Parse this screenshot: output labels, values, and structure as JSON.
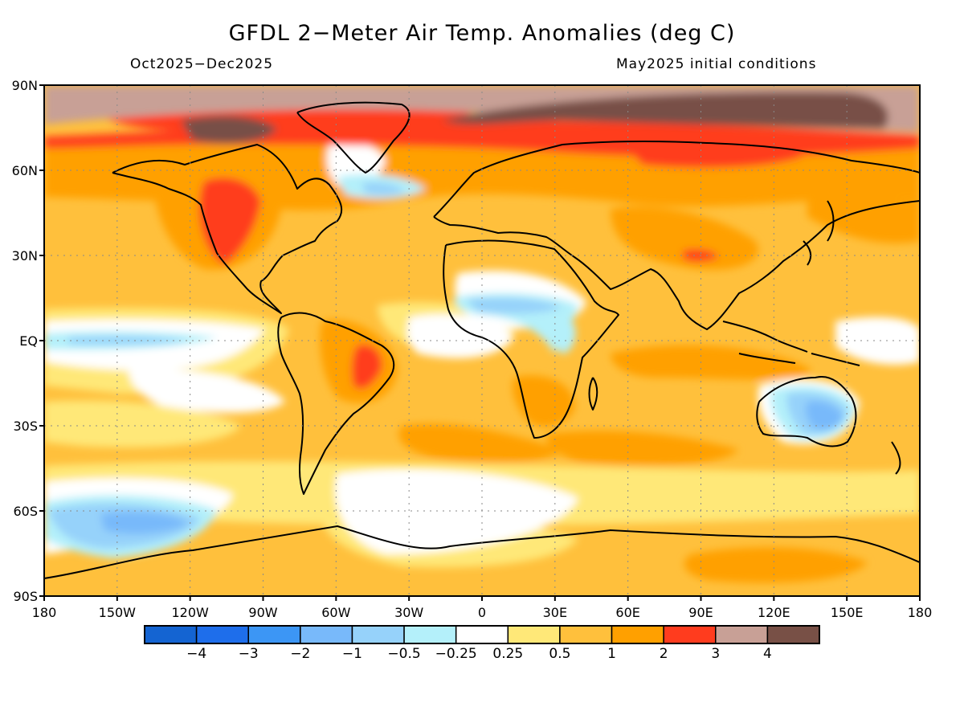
{
  "title": "GFDL 2−Meter Air Temp. Anomalies (deg C)",
  "subtitle_left": "Oct2025−Dec2025",
  "subtitle_right": "May2025 initial conditions",
  "map": {
    "projection": "equirectangular",
    "lon_range": [
      -180,
      180
    ],
    "lat_range": [
      -90,
      90
    ],
    "lat_ticks": [
      {
        "lat": 90,
        "label": "90N"
      },
      {
        "lat": 60,
        "label": "60N"
      },
      {
        "lat": 30,
        "label": "30N"
      },
      {
        "lat": 0,
        "label": "EQ"
      },
      {
        "lat": -30,
        "label": "30S"
      },
      {
        "lat": -60,
        "label": "60S"
      },
      {
        "lat": -90,
        "label": "90S"
      }
    ],
    "lon_ticks": [
      {
        "lon": -180,
        "label": "180"
      },
      {
        "lon": -150,
        "label": "150W"
      },
      {
        "lon": -120,
        "label": "120W"
      },
      {
        "lon": -90,
        "label": "90W"
      },
      {
        "lon": -60,
        "label": "60W"
      },
      {
        "lon": -30,
        "label": "30W"
      },
      {
        "lon": 0,
        "label": "0"
      },
      {
        "lon": 30,
        "label": "30E"
      },
      {
        "lon": 60,
        "label": "60E"
      },
      {
        "lon": 90,
        "label": "90E"
      },
      {
        "lon": 120,
        "label": "120E"
      },
      {
        "lon": 150,
        "label": "150E"
      },
      {
        "lon": 180,
        "label": "180"
      }
    ],
    "grid": "dotted"
  },
  "colorbar": {
    "colors": [
      "#1464d2",
      "#1e6eeb",
      "#3c96f5",
      "#78b9fa",
      "#96d2fa",
      "#b4f0fa",
      "#ffffff",
      "#ffe878",
      "#ffc03c",
      "#ffa000",
      "#ff3c1e",
      "#c8a096",
      "#785046"
    ],
    "labels": [
      "−4",
      "−3",
      "−2",
      "−1",
      "−0.5",
      "−0.25",
      "0.25",
      "0.5",
      "1",
      "2",
      "3",
      "4"
    ]
  },
  "anomaly_regions": [
    {
      "name": "arctic-ocean-warm-anomaly",
      "range": "3 to 4+"
    },
    {
      "name": "western-north-america-warm-anomaly",
      "range": "2 to 3"
    },
    {
      "name": "central-brazil-warm-anomaly",
      "range": "2 to 3"
    },
    {
      "name": "equatorial-pacific-cool-anomaly",
      "range": "-0.5 to -0.25"
    },
    {
      "name": "australia-cool-anomaly",
      "range": "-2 to -0.25"
    },
    {
      "name": "south-pacific-cool-anomaly",
      "range": "-1 to -0.25"
    },
    {
      "name": "sahel-cool-anomaly",
      "range": "-1 to -0.25"
    },
    {
      "name": "north-atlantic-cool-anomaly",
      "range": "-0.5 to -0.25"
    }
  ]
}
